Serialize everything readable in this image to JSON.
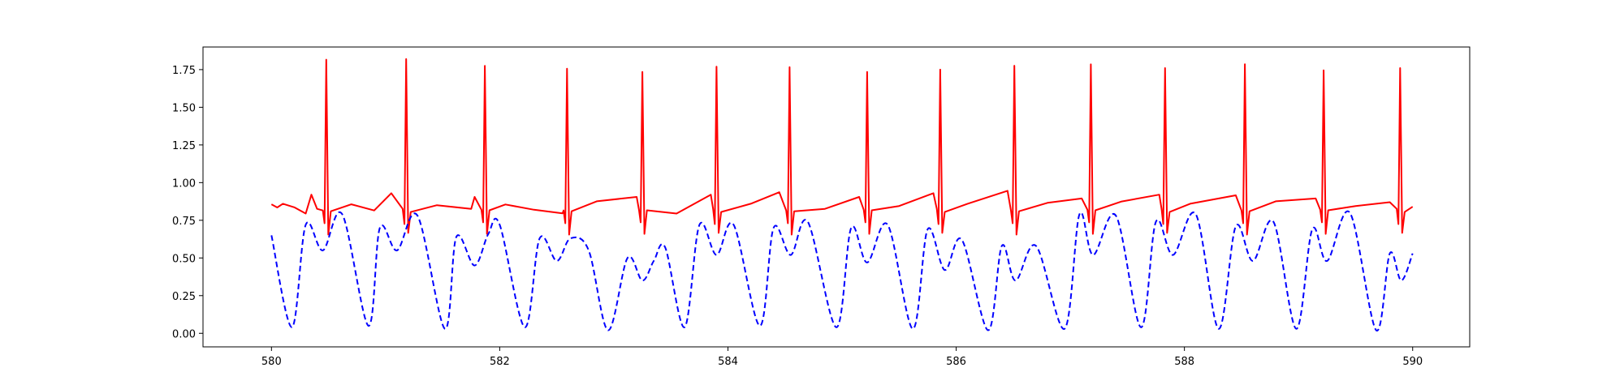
{
  "chart_data": {
    "type": "line",
    "title": "",
    "xlabel": "",
    "ylabel": "",
    "xlim": [
      579.4,
      590.5
    ],
    "ylim": [
      -0.09,
      1.9
    ],
    "xticks": [
      580,
      582,
      584,
      586,
      588,
      590
    ],
    "yticks": [
      0.0,
      0.25,
      0.5,
      0.75,
      1.0,
      1.25,
      1.5,
      1.75
    ],
    "xtick_labels": [
      "580",
      "582",
      "584",
      "586",
      "588",
      "590"
    ],
    "ytick_labels": [
      "0.00",
      "0.25",
      "0.50",
      "0.75",
      "1.00",
      "1.25",
      "1.50",
      "1.75"
    ],
    "grid": false,
    "series": [
      {
        "color": "#ff0000",
        "style": "solid",
        "baseline": 0.83,
        "beats": [
          {
            "x": 580.48,
            "peak": 1.81
          },
          {
            "x": 581.18,
            "peak": 1.82
          },
          {
            "x": 581.87,
            "peak": 1.78
          },
          {
            "x": 582.59,
            "peak": 1.75
          },
          {
            "x": 583.25,
            "peak": 1.74
          },
          {
            "x": 583.9,
            "peak": 1.77
          },
          {
            "x": 584.54,
            "peak": 1.76
          },
          {
            "x": 585.22,
            "peak": 1.74
          },
          {
            "x": 585.86,
            "peak": 1.75
          },
          {
            "x": 586.51,
            "peak": 1.77
          },
          {
            "x": 587.18,
            "peak": 1.79
          },
          {
            "x": 587.83,
            "peak": 1.76
          },
          {
            "x": 588.53,
            "peak": 1.78
          },
          {
            "x": 589.22,
            "peak": 1.75
          },
          {
            "x": 589.89,
            "peak": 1.76
          }
        ],
        "points": [
          [
            580.0,
            0.85
          ],
          [
            580.05,
            0.84
          ],
          [
            580.1,
            0.86
          ],
          [
            580.2,
            0.83
          ],
          [
            580.3,
            0.8
          ],
          [
            580.35,
            0.92
          ],
          [
            580.4,
            0.82
          ],
          [
            580.7,
            0.85
          ],
          [
            580.9,
            0.82
          ],
          [
            581.05,
            0.93
          ],
          [
            581.45,
            0.85
          ],
          [
            581.75,
            0.82
          ],
          [
            581.78,
            0.91
          ],
          [
            582.05,
            0.86
          ],
          [
            582.3,
            0.82
          ],
          [
            582.55,
            0.79
          ],
          [
            582.85,
            0.87
          ],
          [
            583.2,
            0.91
          ],
          [
            583.55,
            0.8
          ],
          [
            583.85,
            0.92
          ],
          [
            584.2,
            0.86
          ],
          [
            584.45,
            0.93
          ],
          [
            584.85,
            0.82
          ],
          [
            585.15,
            0.91
          ],
          [
            585.5,
            0.85
          ],
          [
            585.8,
            0.93
          ],
          [
            586.1,
            0.86
          ],
          [
            586.45,
            0.94
          ],
          [
            586.8,
            0.86
          ],
          [
            587.1,
            0.9
          ],
          [
            587.45,
            0.88
          ],
          [
            587.78,
            0.92
          ],
          [
            588.05,
            0.86
          ],
          [
            588.45,
            0.91
          ],
          [
            588.8,
            0.87
          ],
          [
            589.15,
            0.9
          ],
          [
            589.5,
            0.85
          ],
          [
            589.8,
            0.87
          ],
          [
            590.0,
            0.84
          ]
        ]
      },
      {
        "color": "#0000ff",
        "style": "dashed",
        "troughs": [
          [
            580.18,
            0.04
          ],
          [
            580.85,
            0.05
          ],
          [
            581.52,
            0.03
          ],
          [
            582.22,
            0.04
          ],
          [
            582.95,
            0.02
          ],
          [
            583.62,
            0.04
          ],
          [
            584.28,
            0.05
          ],
          [
            584.95,
            0.04
          ],
          [
            585.62,
            0.03
          ],
          [
            586.28,
            0.02
          ],
          [
            586.95,
            0.03
          ],
          [
            587.62,
            0.04
          ],
          [
            588.3,
            0.03
          ],
          [
            588.98,
            0.03
          ],
          [
            589.68,
            0.02
          ]
        ],
        "points": [
          [
            580.0,
            0.65
          ],
          [
            580.18,
            0.04
          ],
          [
            580.3,
            0.72
          ],
          [
            580.45,
            0.55
          ],
          [
            580.62,
            0.79
          ],
          [
            580.85,
            0.05
          ],
          [
            580.95,
            0.7
          ],
          [
            581.1,
            0.55
          ],
          [
            581.28,
            0.78
          ],
          [
            581.52,
            0.03
          ],
          [
            581.62,
            0.64
          ],
          [
            581.78,
            0.45
          ],
          [
            581.9,
            0.66
          ],
          [
            582.0,
            0.72
          ],
          [
            582.22,
            0.04
          ],
          [
            582.35,
            0.63
          ],
          [
            582.5,
            0.48
          ],
          [
            582.62,
            0.63
          ],
          [
            582.78,
            0.55
          ],
          [
            582.95,
            0.02
          ],
          [
            583.12,
            0.5
          ],
          [
            583.25,
            0.35
          ],
          [
            583.35,
            0.48
          ],
          [
            583.45,
            0.57
          ],
          [
            583.62,
            0.04
          ],
          [
            583.75,
            0.72
          ],
          [
            583.9,
            0.52
          ],
          [
            584.05,
            0.72
          ],
          [
            584.28,
            0.05
          ],
          [
            584.4,
            0.7
          ],
          [
            584.55,
            0.52
          ],
          [
            584.7,
            0.74
          ],
          [
            584.95,
            0.04
          ],
          [
            585.08,
            0.7
          ],
          [
            585.22,
            0.47
          ],
          [
            585.4,
            0.72
          ],
          [
            585.62,
            0.03
          ],
          [
            585.75,
            0.69
          ],
          [
            585.9,
            0.42
          ],
          [
            586.05,
            0.62
          ],
          [
            586.28,
            0.02
          ],
          [
            586.4,
            0.58
          ],
          [
            586.52,
            0.35
          ],
          [
            586.7,
            0.58
          ],
          [
            586.95,
            0.03
          ],
          [
            587.08,
            0.79
          ],
          [
            587.2,
            0.52
          ],
          [
            587.4,
            0.78
          ],
          [
            587.62,
            0.04
          ],
          [
            587.75,
            0.74
          ],
          [
            587.9,
            0.52
          ],
          [
            588.1,
            0.79
          ],
          [
            588.3,
            0.03
          ],
          [
            588.45,
            0.71
          ],
          [
            588.6,
            0.48
          ],
          [
            588.78,
            0.74
          ],
          [
            588.98,
            0.03
          ],
          [
            589.12,
            0.69
          ],
          [
            589.25,
            0.48
          ],
          [
            589.45,
            0.8
          ],
          [
            589.68,
            0.02
          ],
          [
            589.8,
            0.53
          ],
          [
            589.9,
            0.35
          ],
          [
            590.0,
            0.53
          ]
        ]
      }
    ]
  }
}
